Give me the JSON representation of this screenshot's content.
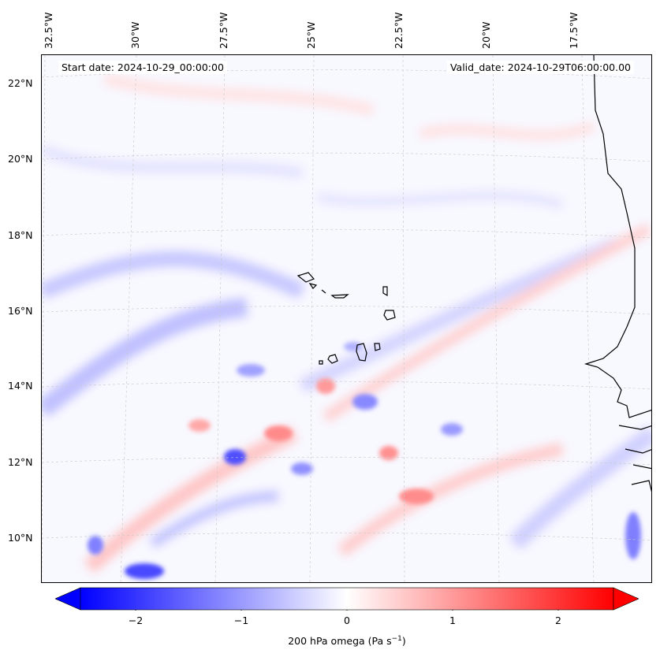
{
  "map": {
    "start_date": "Start date: 2024-10-29_00:00:00",
    "valid_date": "Valid_date: 2024-10-29T06:00:00.00",
    "lon_labels": [
      "32.5°W",
      "30°W",
      "27.5°W",
      "25°W",
      "22.5°W",
      "20°W",
      "17.5°W"
    ],
    "lat_labels": [
      "22°N",
      "20°N",
      "18°N",
      "16°N",
      "14°N",
      "12°N",
      "10°N"
    ],
    "colors": {
      "negative": "#0000ff",
      "positive": "#ff0000",
      "zero": "#ffffff",
      "coastline": "#000000"
    }
  },
  "colorbar": {
    "ticks": [
      "−2",
      "−1",
      "0",
      "1",
      "2"
    ],
    "label": "200 hPa omega (Pa s",
    "label_unit_sup": "−1",
    "label_close": ")",
    "range": [
      -2.6,
      2.6
    ]
  }
}
